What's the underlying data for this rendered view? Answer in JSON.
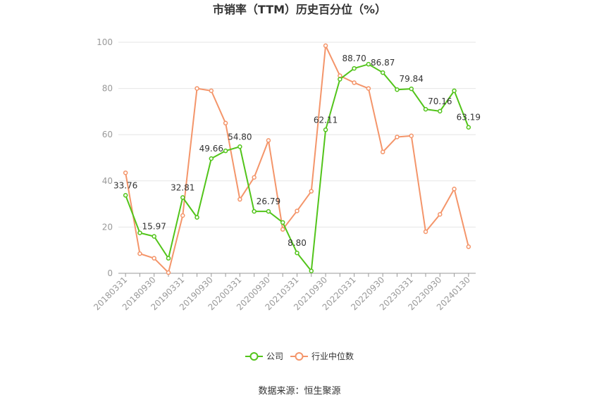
{
  "chart_data": {
    "type": "line",
    "title": "市销率（TTM）历史百分位（%）",
    "xlabel": "",
    "ylabel": "",
    "ylim": [
      0,
      100
    ],
    "yticks": [
      0,
      20,
      40,
      60,
      80,
      100
    ],
    "x_tick_labels": [
      "20180331",
      "20180930",
      "20190331",
      "20190930",
      "20200331",
      "20200930",
      "20210331",
      "20210930",
      "20220331",
      "20220930",
      "20230331",
      "20230930",
      "20240130"
    ],
    "x": [
      "20180331",
      "20180630",
      "20180930",
      "20181231",
      "20190331",
      "20190630",
      "20190930",
      "20191231",
      "20200331",
      "20200630",
      "20200930",
      "20201231",
      "20210331",
      "20210630",
      "20210930",
      "20211231",
      "20220331",
      "20220630",
      "20220930",
      "20221231",
      "20230331",
      "20230630",
      "20230930",
      "20231231",
      "20240130"
    ],
    "series": [
      {
        "name": "公司",
        "color": "#52c41a",
        "values": [
          33.76,
          17.5,
          15.97,
          6.5,
          32.81,
          24.2,
          49.66,
          53.0,
          54.8,
          26.8,
          26.79,
          22.0,
          8.8,
          1.0,
          62.11,
          84.0,
          88.7,
          90.5,
          86.87,
          79.5,
          79.84,
          71.0,
          70.16,
          79.0,
          63.19
        ]
      },
      {
        "name": "行业中位数",
        "color": "#f4956a",
        "values": [
          43.5,
          8.5,
          6.5,
          0.3,
          25.0,
          80.0,
          79.0,
          65.0,
          32.0,
          41.5,
          57.5,
          19.0,
          27.0,
          35.5,
          98.5,
          85.5,
          82.5,
          80.0,
          52.5,
          59.0,
          59.5,
          18.0,
          25.5,
          36.5,
          11.5
        ]
      }
    ],
    "data_labels": [
      {
        "index": 0,
        "text": "33.76"
      },
      {
        "index": 2,
        "text": "15.97"
      },
      {
        "index": 4,
        "text": "32.81"
      },
      {
        "index": 6,
        "text": "49.66"
      },
      {
        "index": 8,
        "text": "54.80"
      },
      {
        "index": 10,
        "text": "26.79"
      },
      {
        "index": 12,
        "text": "8.80"
      },
      {
        "index": 14,
        "text": "62.11"
      },
      {
        "index": 16,
        "text": "88.70"
      },
      {
        "index": 18,
        "text": "86.87"
      },
      {
        "index": 20,
        "text": "79.84"
      },
      {
        "index": 22,
        "text": "70.16"
      },
      {
        "index": 24,
        "text": "63.19"
      }
    ],
    "grid": true,
    "legend_position": "bottom-center"
  },
  "source": "数据来源：恒生聚源"
}
